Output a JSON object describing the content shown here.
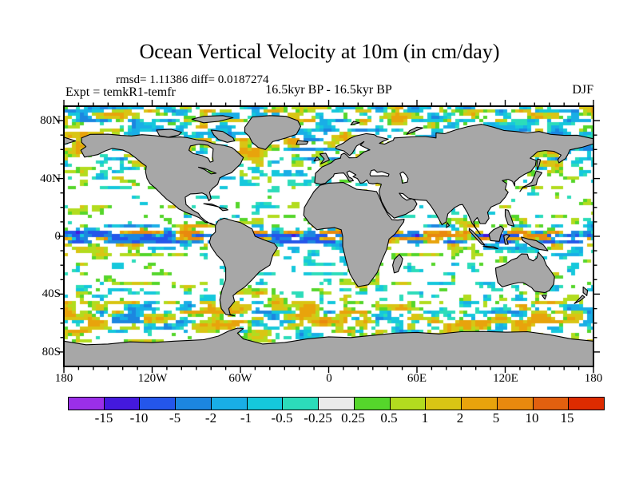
{
  "title": "Ocean Vertical Velocity at 10m (in cm/day)",
  "stats_line": "rmsd= 1.11386 diff= 0.0187274",
  "experiment_label": "Expt = temkR1-temfr",
  "period_label": "16.5kyr BP - 16.5kyr BP",
  "season_label": "DJF",
  "map": {
    "y_axis_labels": [
      "80N",
      "40N",
      "0",
      "40S",
      "80S"
    ],
    "x_axis_labels": [
      "180",
      "120W",
      "60W",
      "0",
      "60E",
      "120E",
      "180"
    ],
    "land_color": "#a7a7a7",
    "coast_color": "#000000",
    "ocean_color": "#ffffff"
  },
  "colorbar": {
    "tick_labels": [
      "-15",
      "-10",
      "-5",
      "-2",
      "-1",
      "-0.5",
      "-0.25",
      "0.25",
      "0.5",
      "1",
      "2",
      "5",
      "10",
      "15"
    ],
    "colors": [
      "#9b2fe8",
      "#4419dd",
      "#2456ea",
      "#1c86e0",
      "#19aee6",
      "#15c8dc",
      "#2cdcba",
      "#ebebeb",
      "#55d62b",
      "#b2dc1f",
      "#d9c514",
      "#e8a30c",
      "#e9890e",
      "#e2600f",
      "#dd2b00"
    ]
  },
  "chart_data": {
    "type": "heatmap",
    "title": "Ocean Vertical Velocity at 10m (in cm/day)",
    "subtitle": "rmsd= 1.11386 diff= 0.0187274",
    "field": "difference of ocean vertical velocity at 10 m depth, experiment temkR1-temfr, 16.5kyr BP - 16.5kyr BP",
    "season": "DJF",
    "rmsd": 1.11386,
    "diff": 0.0187274,
    "units": "cm/day",
    "projection": "equirectangular world map, gray land, white near-zero ocean",
    "x_axis": {
      "tick_labels": [
        "180",
        "120W",
        "60W",
        "0",
        "60E",
        "120E",
        "180"
      ],
      "range_deg_lon": [
        -180,
        180
      ],
      "minor_tick_deg": 10
    },
    "y_axis": {
      "tick_labels": [
        "80N",
        "40N",
        "0",
        "40S",
        "80S"
      ],
      "range_deg_lat": [
        -90,
        90
      ],
      "minor_tick_deg": 10
    },
    "levels": [
      -15,
      -10,
      -5,
      -2,
      -1,
      -0.5,
      -0.25,
      0.25,
      0.5,
      1,
      2,
      5,
      10,
      15
    ],
    "palette": [
      "#9b2fe8",
      "#4419dd",
      "#2456ea",
      "#1c86e0",
      "#19aee6",
      "#15c8dc",
      "#2cdcba",
      "#ebebeb",
      "#55d62b",
      "#b2dc1f",
      "#d9c514",
      "#e8a30c",
      "#e9890e",
      "#e2600f",
      "#dd2b00"
    ],
    "legend_position": "bottom horizontal color bar",
    "notable_features": "strong alternating zonal positive/negative streaks along the equator; green-yellow band around the Southern Ocean; patchy cyan-green mid-latitude ocean; large white near-zero subtropical regions"
  }
}
